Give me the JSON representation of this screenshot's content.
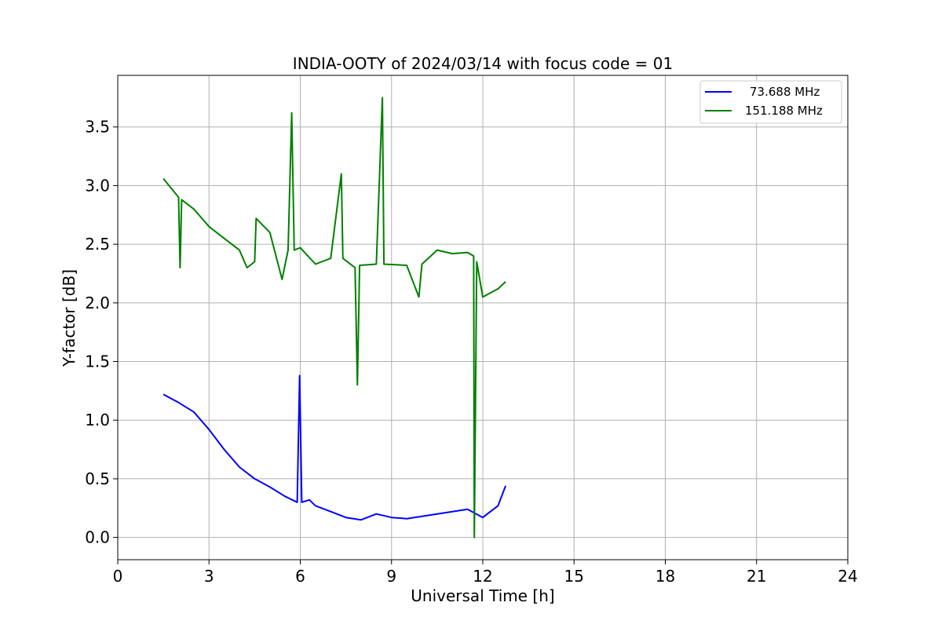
{
  "chart_data": {
    "type": "line",
    "title": "INDIA-OOTY of 2024/03/14 with focus code = 01",
    "xlabel": "Universal Time [h]",
    "ylabel": "Y-factor [dB]",
    "xlim": [
      0,
      24
    ],
    "ylim": [
      -0.19,
      3.94
    ],
    "xticks": [
      0,
      3,
      6,
      9,
      12,
      15,
      18,
      21,
      24
    ],
    "xtick_labels": [
      "0",
      "3",
      "6",
      "9",
      "12",
      "15",
      "18",
      "21",
      "24"
    ],
    "yticks": [
      0.0,
      0.5,
      1.0,
      1.5,
      2.0,
      2.5,
      3.0,
      3.5
    ],
    "ytick_labels": [
      "0.0",
      "0.5",
      "1.0",
      "1.5",
      "2.0",
      "2.5",
      "3.0",
      "3.5"
    ],
    "grid": true,
    "legend_position": "top-right",
    "series": [
      {
        "name": "73.688 MHz",
        "color": "#0000ff",
        "x": [
          1.5,
          2.0,
          2.5,
          3.0,
          3.5,
          4.0,
          4.5,
          5.0,
          5.5,
          5.9,
          5.98,
          6.05,
          6.3,
          6.5,
          7.0,
          7.5,
          8.0,
          8.5,
          9.0,
          9.5,
          10.0,
          10.5,
          11.0,
          11.5,
          12.0,
          12.5,
          12.75
        ],
        "y": [
          1.22,
          1.15,
          1.07,
          0.92,
          0.75,
          0.6,
          0.5,
          0.43,
          0.35,
          0.3,
          1.38,
          0.3,
          0.32,
          0.27,
          0.22,
          0.17,
          0.15,
          0.2,
          0.17,
          0.16,
          0.18,
          0.2,
          0.22,
          0.24,
          0.17,
          0.27,
          0.44
        ]
      },
      {
        "name": "151.188 MHz",
        "color": "#008000",
        "x": [
          1.5,
          2.0,
          2.05,
          2.1,
          2.5,
          3.0,
          3.5,
          4.0,
          4.25,
          4.5,
          4.55,
          5.0,
          5.4,
          5.6,
          5.72,
          5.8,
          6.0,
          6.5,
          7.0,
          7.35,
          7.4,
          7.8,
          7.88,
          7.95,
          8.5,
          8.7,
          8.75,
          9.5,
          9.9,
          10.0,
          10.5,
          11.0,
          11.5,
          11.7,
          11.72,
          11.8,
          12.0,
          12.5,
          12.75
        ],
        "y": [
          3.06,
          2.9,
          2.3,
          2.88,
          2.8,
          2.65,
          2.55,
          2.45,
          2.3,
          2.35,
          2.72,
          2.6,
          2.2,
          2.45,
          3.62,
          2.45,
          2.47,
          2.33,
          2.38,
          3.1,
          2.38,
          2.3,
          1.3,
          2.32,
          2.33,
          3.75,
          2.33,
          2.32,
          2.05,
          2.33,
          2.45,
          2.42,
          2.43,
          2.4,
          0.0,
          2.35,
          2.05,
          2.12,
          2.18
        ]
      }
    ]
  }
}
